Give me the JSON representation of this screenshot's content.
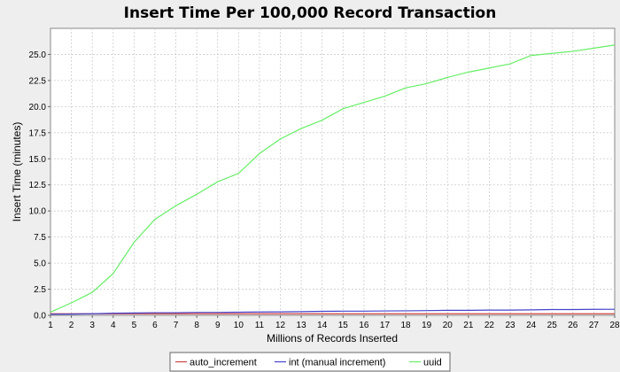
{
  "chart_data": {
    "type": "line",
    "title": "Insert Time Per 100,000 Record Transaction",
    "xlabel": "Millions of Records Inserted",
    "ylabel": "Insert Time (minutes)",
    "x": [
      1,
      2,
      3,
      4,
      5,
      6,
      7,
      8,
      9,
      10,
      11,
      12,
      13,
      14,
      15,
      16,
      17,
      18,
      19,
      20,
      21,
      22,
      23,
      24,
      25,
      26,
      27,
      28
    ],
    "xlim": [
      1,
      28
    ],
    "ylim": [
      0,
      27.5
    ],
    "xticks": [
      "1",
      "2",
      "3",
      "4",
      "5",
      "6",
      "7",
      "8",
      "9",
      "10",
      "11",
      "12",
      "13",
      "14",
      "15",
      "16",
      "17",
      "18",
      "19",
      "20",
      "21",
      "22",
      "23",
      "24",
      "25",
      "26",
      "27",
      "28"
    ],
    "yticks": [
      "0.0",
      "2.5",
      "5.0",
      "7.5",
      "10.0",
      "12.5",
      "15.0",
      "17.5",
      "20.0",
      "22.5",
      "25.0"
    ],
    "grid": true,
    "legend_position": "bottom",
    "series": [
      {
        "name": "auto_increment",
        "color": "#cc4444",
        "values": [
          0.15,
          0.15,
          0.15,
          0.15,
          0.15,
          0.15,
          0.15,
          0.15,
          0.15,
          0.15,
          0.15,
          0.15,
          0.15,
          0.15,
          0.15,
          0.15,
          0.15,
          0.15,
          0.15,
          0.15,
          0.15,
          0.15,
          0.15,
          0.15,
          0.15,
          0.15,
          0.15,
          0.15
        ]
      },
      {
        "name": "int (manual increment)",
        "color": "#4444cc",
        "values": [
          0.1,
          0.12,
          0.15,
          0.2,
          0.22,
          0.25,
          0.25,
          0.28,
          0.28,
          0.3,
          0.32,
          0.33,
          0.35,
          0.38,
          0.4,
          0.4,
          0.42,
          0.43,
          0.45,
          0.48,
          0.48,
          0.5,
          0.5,
          0.52,
          0.55,
          0.55,
          0.57,
          0.58
        ]
      },
      {
        "name": "uuid",
        "color": "#66ee66",
        "values": [
          0.3,
          1.2,
          2.2,
          4.0,
          7.0,
          9.2,
          10.5,
          11.6,
          12.8,
          13.6,
          15.5,
          16.9,
          17.9,
          18.7,
          19.8,
          20.4,
          21.0,
          21.8,
          22.2,
          22.8,
          23.3,
          23.7,
          24.1,
          24.9,
          25.1,
          25.3,
          25.6,
          25.9
        ]
      }
    ],
    "colors": {
      "plot_background": "#ffffff",
      "page_background": "#eeeeee",
      "gridline": "#cccccc"
    }
  }
}
